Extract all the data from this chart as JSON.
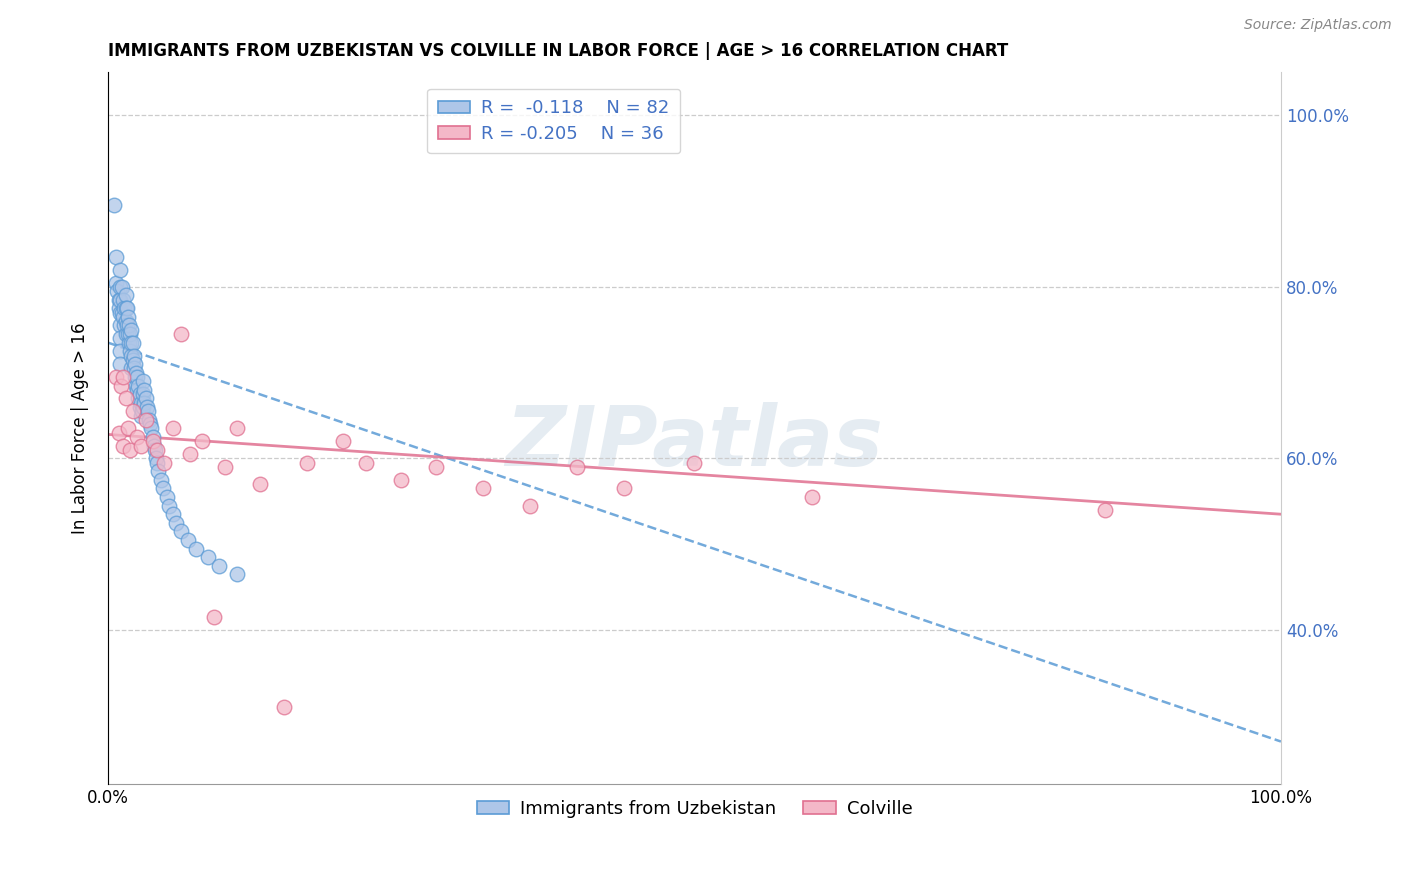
{
  "title": "IMMIGRANTS FROM UZBEKISTAN VS COLVILLE IN LABOR FORCE | AGE > 16 CORRELATION CHART",
  "source_text": "Source: ZipAtlas.com",
  "ylabel": "In Labor Force | Age > 16",
  "xlim": [
    0.0,
    1.0
  ],
  "ylim": [
    0.22,
    1.05
  ],
  "yticks": [
    0.4,
    0.6,
    0.8,
    1.0
  ],
  "ytick_labels": [
    "40.0%",
    "60.0%",
    "80.0%",
    "100.0%"
  ],
  "xtick_labels": [
    "0.0%",
    "100.0%"
  ],
  "watermark": "ZIPatlas",
  "legend_r1": "R =  -0.118",
  "legend_n1": "N = 82",
  "legend_r2": "R = -0.205",
  "legend_n2": "N = 36",
  "blue_color": "#aec6e8",
  "blue_edge_color": "#5b9bd5",
  "pink_color": "#f4b8c8",
  "pink_edge_color": "#e07090",
  "trend_blue_color": "#5b9bd5",
  "trend_pink_color": "#e07090",
  "blue_trend_y_start": 0.735,
  "blue_trend_y_end": 0.27,
  "pink_trend_y_start": 0.628,
  "pink_trend_y_end": 0.535,
  "blue_scatter_x": [
    0.005,
    0.007,
    0.007,
    0.008,
    0.009,
    0.009,
    0.01,
    0.01,
    0.01,
    0.01,
    0.01,
    0.01,
    0.01,
    0.01,
    0.012,
    0.012,
    0.013,
    0.013,
    0.014,
    0.014,
    0.015,
    0.015,
    0.015,
    0.015,
    0.016,
    0.016,
    0.017,
    0.017,
    0.018,
    0.018,
    0.019,
    0.019,
    0.02,
    0.02,
    0.02,
    0.02,
    0.021,
    0.021,
    0.022,
    0.022,
    0.023,
    0.023,
    0.024,
    0.024,
    0.025,
    0.025,
    0.026,
    0.026,
    0.027,
    0.027,
    0.028,
    0.028,
    0.029,
    0.03,
    0.03,
    0.03,
    0.031,
    0.031,
    0.032,
    0.033,
    0.034,
    0.035,
    0.036,
    0.037,
    0.038,
    0.039,
    0.04,
    0.041,
    0.042,
    0.043,
    0.045,
    0.047,
    0.05,
    0.052,
    0.055,
    0.058,
    0.062,
    0.068,
    0.075,
    0.085,
    0.095,
    0.11
  ],
  "blue_scatter_y": [
    0.895,
    0.835,
    0.805,
    0.795,
    0.785,
    0.775,
    0.82,
    0.8,
    0.785,
    0.77,
    0.755,
    0.74,
    0.725,
    0.71,
    0.8,
    0.77,
    0.785,
    0.765,
    0.775,
    0.755,
    0.79,
    0.775,
    0.76,
    0.745,
    0.775,
    0.755,
    0.765,
    0.745,
    0.755,
    0.735,
    0.745,
    0.725,
    0.75,
    0.735,
    0.72,
    0.705,
    0.735,
    0.715,
    0.72,
    0.705,
    0.71,
    0.695,
    0.7,
    0.685,
    0.695,
    0.68,
    0.685,
    0.67,
    0.675,
    0.66,
    0.665,
    0.65,
    0.655,
    0.69,
    0.675,
    0.66,
    0.68,
    0.665,
    0.67,
    0.66,
    0.655,
    0.645,
    0.64,
    0.635,
    0.625,
    0.615,
    0.61,
    0.6,
    0.595,
    0.585,
    0.575,
    0.565,
    0.555,
    0.545,
    0.535,
    0.525,
    0.515,
    0.505,
    0.495,
    0.485,
    0.475,
    0.465
  ],
  "pink_scatter_x": [
    0.007,
    0.009,
    0.011,
    0.013,
    0.013,
    0.015,
    0.017,
    0.019,
    0.021,
    0.025,
    0.028,
    0.032,
    0.038,
    0.042,
    0.048,
    0.055,
    0.062,
    0.07,
    0.08,
    0.09,
    0.1,
    0.11,
    0.13,
    0.15,
    0.17,
    0.2,
    0.22,
    0.25,
    0.28,
    0.32,
    0.36,
    0.4,
    0.44,
    0.5,
    0.6,
    0.85
  ],
  "pink_scatter_y": [
    0.695,
    0.63,
    0.685,
    0.615,
    0.695,
    0.67,
    0.635,
    0.61,
    0.655,
    0.625,
    0.615,
    0.645,
    0.62,
    0.61,
    0.595,
    0.635,
    0.745,
    0.605,
    0.62,
    0.415,
    0.59,
    0.635,
    0.57,
    0.31,
    0.595,
    0.62,
    0.595,
    0.575,
    0.59,
    0.565,
    0.545,
    0.59,
    0.565,
    0.595,
    0.555,
    0.54
  ]
}
